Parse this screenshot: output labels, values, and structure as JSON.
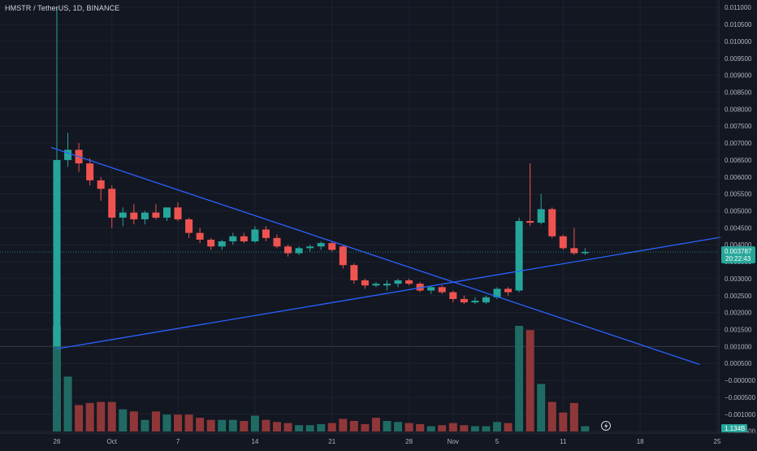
{
  "symbol_title": "HMSTR / TetherUS, 1D, BINANCE",
  "colors": {
    "background": "#131722",
    "up": "#26a69a",
    "down": "#ef5350",
    "up_volume": "#1f6b63",
    "down_volume": "#8f3738",
    "trendline": "#2962ff",
    "axis_text": "#b2b5be"
  },
  "price_badge": {
    "price": "0.003787",
    "countdown": "20:22:43",
    "color": "#26a69a"
  },
  "volume_badge": {
    "value": "1.134B",
    "color": "#26a69a"
  },
  "lightning_icon": "lightning-icon",
  "chart_data": {
    "type": "candlestick",
    "title": "HMSTR / TetherUS, 1D, BINANCE",
    "ylim": [
      -0.0017,
      0.0111
    ],
    "y_ticks": [
      "0.011000",
      "0.010500",
      "0.010000",
      "0.009500",
      "0.009000",
      "0.008500",
      "0.008000",
      "0.007500",
      "0.007000",
      "0.006500",
      "0.006000",
      "0.005500",
      "0.005000",
      "0.004500",
      "0.004000",
      "0.003500",
      "0.003000",
      "0.002500",
      "0.002000",
      "0.001500",
      "0.001000",
      "0.000500",
      "−0.000000",
      "−0.000500",
      "−0.001000",
      "−0.001500"
    ],
    "x_ticks": [
      {
        "label": "26",
        "day": 0
      },
      {
        "label": "Oct",
        "day": 5
      },
      {
        "label": "7",
        "day": 11
      },
      {
        "label": "14",
        "day": 18
      },
      {
        "label": "21",
        "day": 25
      },
      {
        "label": "28",
        "day": 32
      },
      {
        "label": "Nov",
        "day": 36
      },
      {
        "label": "5",
        "day": 40
      },
      {
        "label": "11",
        "day": 46
      },
      {
        "label": "18",
        "day": 53
      },
      {
        "label": "25",
        "day": 60
      }
    ],
    "last_price": 0.003787,
    "candles": [
      {
        "date": "Sep 26",
        "o": 0.001,
        "h": 0.011,
        "l": 0.001,
        "c": 0.0065
      },
      {
        "date": "Sep 27",
        "o": 0.0065,
        "h": 0.0073,
        "l": 0.0063,
        "c": 0.0068
      },
      {
        "date": "Sep 28",
        "o": 0.0068,
        "h": 0.007,
        "l": 0.00615,
        "c": 0.0064
      },
      {
        "date": "Sep 29",
        "o": 0.0064,
        "h": 0.00655,
        "l": 0.00575,
        "c": 0.0059
      },
      {
        "date": "Sep 30",
        "o": 0.0059,
        "h": 0.006,
        "l": 0.0053,
        "c": 0.00565
      },
      {
        "date": "Oct 1",
        "o": 0.00565,
        "h": 0.00575,
        "l": 0.0045,
        "c": 0.0048
      },
      {
        "date": "Oct 2",
        "o": 0.0048,
        "h": 0.0051,
        "l": 0.00455,
        "c": 0.00495
      },
      {
        "date": "Oct 3",
        "o": 0.00495,
        "h": 0.0052,
        "l": 0.0046,
        "c": 0.00475
      },
      {
        "date": "Oct 4",
        "o": 0.00475,
        "h": 0.005,
        "l": 0.0046,
        "c": 0.00495
      },
      {
        "date": "Oct 5",
        "o": 0.00495,
        "h": 0.0052,
        "l": 0.00475,
        "c": 0.0048
      },
      {
        "date": "Oct 6",
        "o": 0.0048,
        "h": 0.0051,
        "l": 0.0047,
        "c": 0.0051
      },
      {
        "date": "Oct 7",
        "o": 0.0051,
        "h": 0.00525,
        "l": 0.0047,
        "c": 0.00475
      },
      {
        "date": "Oct 8",
        "o": 0.00475,
        "h": 0.0048,
        "l": 0.0042,
        "c": 0.00435
      },
      {
        "date": "Oct 9",
        "o": 0.00435,
        "h": 0.0045,
        "l": 0.00405,
        "c": 0.00415
      },
      {
        "date": "Oct 10",
        "o": 0.00415,
        "h": 0.0042,
        "l": 0.00385,
        "c": 0.00395
      },
      {
        "date": "Oct 11",
        "o": 0.00395,
        "h": 0.00415,
        "l": 0.00385,
        "c": 0.0041
      },
      {
        "date": "Oct 12",
        "o": 0.0041,
        "h": 0.00435,
        "l": 0.004,
        "c": 0.00425
      },
      {
        "date": "Oct 13",
        "o": 0.00425,
        "h": 0.00435,
        "l": 0.00405,
        "c": 0.0041
      },
      {
        "date": "Oct 14",
        "o": 0.0041,
        "h": 0.00455,
        "l": 0.00405,
        "c": 0.00445
      },
      {
        "date": "Oct 15",
        "o": 0.00445,
        "h": 0.00455,
        "l": 0.0041,
        "c": 0.0042
      },
      {
        "date": "Oct 16",
        "o": 0.0042,
        "h": 0.0043,
        "l": 0.0039,
        "c": 0.00395
      },
      {
        "date": "Oct 17",
        "o": 0.00395,
        "h": 0.004,
        "l": 0.00365,
        "c": 0.00375
      },
      {
        "date": "Oct 18",
        "o": 0.00375,
        "h": 0.00395,
        "l": 0.0037,
        "c": 0.0039
      },
      {
        "date": "Oct 19",
        "o": 0.0039,
        "h": 0.004,
        "l": 0.0038,
        "c": 0.00395
      },
      {
        "date": "Oct 20",
        "o": 0.00395,
        "h": 0.0041,
        "l": 0.00385,
        "c": 0.00405
      },
      {
        "date": "Oct 21",
        "o": 0.00405,
        "h": 0.0041,
        "l": 0.0038,
        "c": 0.00385
      },
      {
        "date": "Oct 22",
        "o": 0.00395,
        "h": 0.004,
        "l": 0.0033,
        "c": 0.0034
      },
      {
        "date": "Oct 23",
        "o": 0.0034,
        "h": 0.00345,
        "l": 0.00285,
        "c": 0.00295
      },
      {
        "date": "Oct 24",
        "o": 0.00295,
        "h": 0.003,
        "l": 0.0027,
        "c": 0.0028
      },
      {
        "date": "Oct 25",
        "o": 0.0028,
        "h": 0.0029,
        "l": 0.00275,
        "c": 0.00285
      },
      {
        "date": "Oct 26",
        "o": 0.0028,
        "h": 0.00295,
        "l": 0.00265,
        "c": 0.00285
      },
      {
        "date": "Oct 27",
        "o": 0.00285,
        "h": 0.003,
        "l": 0.00275,
        "c": 0.00295
      },
      {
        "date": "Oct 28",
        "o": 0.00295,
        "h": 0.003,
        "l": 0.0028,
        "c": 0.00285
      },
      {
        "date": "Oct 29",
        "o": 0.00285,
        "h": 0.0029,
        "l": 0.0026,
        "c": 0.00265
      },
      {
        "date": "Oct 30",
        "o": 0.00265,
        "h": 0.0028,
        "l": 0.00255,
        "c": 0.00275
      },
      {
        "date": "Oct 31",
        "o": 0.00275,
        "h": 0.0028,
        "l": 0.00255,
        "c": 0.0026
      },
      {
        "date": "Nov 1",
        "o": 0.0026,
        "h": 0.00265,
        "l": 0.0023,
        "c": 0.0024
      },
      {
        "date": "Nov 2",
        "o": 0.0024,
        "h": 0.0025,
        "l": 0.00225,
        "c": 0.0023
      },
      {
        "date": "Nov 3",
        "o": 0.0023,
        "h": 0.00245,
        "l": 0.00225,
        "c": 0.00235
      },
      {
        "date": "Nov 4",
        "o": 0.0023,
        "h": 0.0025,
        "l": 0.00225,
        "c": 0.00245
      },
      {
        "date": "Nov 5",
        "o": 0.00245,
        "h": 0.00275,
        "l": 0.0024,
        "c": 0.0027
      },
      {
        "date": "Nov 6",
        "o": 0.0027,
        "h": 0.00275,
        "l": 0.0025,
        "c": 0.0026
      },
      {
        "date": "Nov 7",
        "o": 0.00265,
        "h": 0.0048,
        "l": 0.0026,
        "c": 0.0047
      },
      {
        "date": "Nov 8",
        "o": 0.0047,
        "h": 0.0064,
        "l": 0.00455,
        "c": 0.00465
      },
      {
        "date": "Nov 9",
        "o": 0.00465,
        "h": 0.0055,
        "l": 0.0046,
        "c": 0.00505
      },
      {
        "date": "Nov 10",
        "o": 0.00505,
        "h": 0.0051,
        "l": 0.0042,
        "c": 0.00425
      },
      {
        "date": "Nov 11",
        "o": 0.00425,
        "h": 0.0043,
        "l": 0.00385,
        "c": 0.0039
      },
      {
        "date": "Nov 12",
        "o": 0.0039,
        "h": 0.0045,
        "l": 0.0037,
        "c": 0.00375
      },
      {
        "date": "Nov 13",
        "o": 0.00375,
        "h": 0.0039,
        "l": 0.0037,
        "c": 0.00379
      }
    ],
    "volume_scale_note": "volume axis unlabeled; relative heights",
    "volumes": [
      {
        "v": 1.0,
        "up": true
      },
      {
        "v": 0.52,
        "up": true
      },
      {
        "v": 0.25,
        "up": false
      },
      {
        "v": 0.27,
        "up": false
      },
      {
        "v": 0.28,
        "up": false
      },
      {
        "v": 0.28,
        "up": false
      },
      {
        "v": 0.21,
        "up": true
      },
      {
        "v": 0.19,
        "up": false
      },
      {
        "v": 0.11,
        "up": true
      },
      {
        "v": 0.19,
        "up": false
      },
      {
        "v": 0.16,
        "up": true
      },
      {
        "v": 0.16,
        "up": false
      },
      {
        "v": 0.16,
        "up": false
      },
      {
        "v": 0.13,
        "up": false
      },
      {
        "v": 0.11,
        "up": false
      },
      {
        "v": 0.11,
        "up": true
      },
      {
        "v": 0.11,
        "up": true
      },
      {
        "v": 0.1,
        "up": false
      },
      {
        "v": 0.15,
        "up": true
      },
      {
        "v": 0.11,
        "up": false
      },
      {
        "v": 0.09,
        "up": false
      },
      {
        "v": 0.08,
        "up": false
      },
      {
        "v": 0.06,
        "up": true
      },
      {
        "v": 0.06,
        "up": true
      },
      {
        "v": 0.07,
        "up": true
      },
      {
        "v": 0.08,
        "up": false
      },
      {
        "v": 0.12,
        "up": false
      },
      {
        "v": 0.1,
        "up": false
      },
      {
        "v": 0.07,
        "up": false
      },
      {
        "v": 0.13,
        "up": false
      },
      {
        "v": 0.1,
        "up": true
      },
      {
        "v": 0.09,
        "up": true
      },
      {
        "v": 0.08,
        "up": false
      },
      {
        "v": 0.07,
        "up": false
      },
      {
        "v": 0.05,
        "up": true
      },
      {
        "v": 0.06,
        "up": false
      },
      {
        "v": 0.08,
        "up": false
      },
      {
        "v": 0.06,
        "up": false
      },
      {
        "v": 0.05,
        "up": true
      },
      {
        "v": 0.05,
        "up": true
      },
      {
        "v": 0.09,
        "up": true
      },
      {
        "v": 0.08,
        "up": false
      },
      {
        "v": 1.0,
        "up": true
      },
      {
        "v": 0.96,
        "up": false
      },
      {
        "v": 0.45,
        "up": true
      },
      {
        "v": 0.28,
        "up": false
      },
      {
        "v": 0.18,
        "up": false
      },
      {
        "v": 0.27,
        "up": false
      },
      {
        "v": 0.05,
        "up": true
      }
    ],
    "trendlines": [
      {
        "name": "",
        "from": {
          "day": -0.5,
          "price": 0.00687
        },
        "to": {
          "day": 58.4,
          "price": 0.00047
        }
      },
      {
        "name": "",
        "from": {
          "day": 0,
          "price": 0.00093
        },
        "to": {
          "day": 60.3,
          "price": 0.00422
        }
      }
    ]
  }
}
